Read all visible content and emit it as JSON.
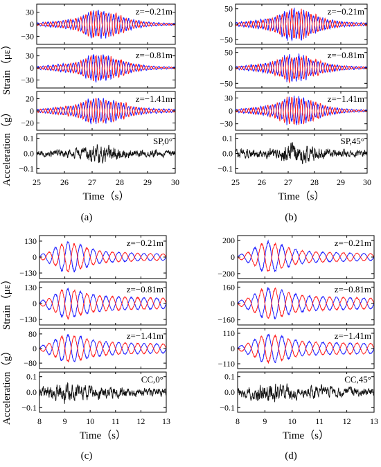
{
  "chart_data": [
    {
      "type": "line",
      "panel_label": "(a)",
      "xlabel": "Time（s）",
      "xticks": [
        "25",
        "26",
        "27",
        "28",
        "29",
        "30"
      ],
      "xlim": [
        25,
        30
      ],
      "grid": false,
      "strain_axis_label": "Strain（με）",
      "acceleration_axis_label": "Acceleration（g）",
      "series_colors": [
        "#1f1fff",
        "#ff2020",
        "#111111"
      ],
      "subplots": [
        {
          "annotation": "z=−0.21m",
          "yticks": [
            "30",
            "0",
            "−30"
          ],
          "ylim": [
            -50,
            50
          ],
          "series": [
            {
              "values": [
                3,
                6,
                9,
                12,
                34,
                30,
                18,
                10,
                5,
                3,
                2
              ]
            },
            {
              "values": [
                2,
                5,
                8,
                14,
                30,
                28,
                22,
                9,
                4,
                2,
                2
              ]
            }
          ]
        },
        {
          "annotation": "z=−0.81m",
          "yticks": [
            "30",
            "0",
            "−30"
          ],
          "ylim": [
            -50,
            50
          ],
          "series": [
            {
              "values": [
                3,
                6,
                9,
                12,
                30,
                28,
                16,
                9,
                5,
                3,
                2
              ]
            },
            {
              "values": [
                2,
                5,
                8,
                14,
                28,
                26,
                20,
                9,
                4,
                2,
                2
              ]
            }
          ]
        },
        {
          "annotation": "z=−1.41m",
          "yticks": [
            "20",
            "0",
            "−20"
          ],
          "ylim": [
            -32,
            32
          ],
          "series": [
            {
              "values": [
                2,
                4,
                6,
                9,
                20,
                18,
                12,
                6,
                4,
                3,
                2
              ]
            },
            {
              "values": [
                2,
                4,
                6,
                10,
                18,
                16,
                14,
                7,
                3,
                2,
                2
              ]
            }
          ]
        },
        {
          "annotation": "SP,0°",
          "yticks": [
            "0.1",
            "0.0",
            "−0.1"
          ],
          "ylim": [
            -0.13,
            0.13
          ],
          "series": [
            {
              "values": [
                0.025,
                0.03,
                0.035,
                0.04,
                0.075,
                0.07,
                0.05,
                0.035,
                0.03,
                0.028,
                0.025
              ]
            }
          ]
        }
      ]
    },
    {
      "type": "line",
      "panel_label": "(b)",
      "xlabel": "Time（s）",
      "xticks": [
        "25",
        "26",
        "27",
        "28",
        "29",
        "30"
      ],
      "xlim": [
        25,
        30
      ],
      "grid": false,
      "series_colors": [
        "#1f1fff",
        "#ff2020",
        "#111111"
      ],
      "subplots": [
        {
          "annotation": "z=−0.21m",
          "yticks": [
            "50",
            "0",
            "−50"
          ],
          "ylim": [
            -65,
            65
          ],
          "series": [
            {
              "values": [
                5,
                9,
                14,
                20,
                48,
                44,
                26,
                14,
                8,
                5,
                4
              ]
            },
            {
              "values": [
                4,
                8,
                13,
                22,
                44,
                42,
                30,
                13,
                7,
                4,
                4
              ]
            }
          ]
        },
        {
          "annotation": "z=−0.81m",
          "yticks": [
            "50",
            "0",
            "−50"
          ],
          "ylim": [
            -65,
            65
          ],
          "series": [
            {
              "values": [
                4,
                8,
                12,
                18,
                40,
                38,
                22,
                12,
                7,
                4,
                3
              ]
            },
            {
              "values": [
                3,
                7,
                11,
                20,
                38,
                36,
                26,
                12,
                6,
                3,
                3
              ]
            }
          ]
        },
        {
          "annotation": "z=−1.41m",
          "yticks": [
            "30",
            "0",
            "−30"
          ],
          "ylim": [
            -45,
            45
          ],
          "series": [
            {
              "values": [
                3,
                6,
                9,
                13,
                30,
                28,
                17,
                9,
                5,
                3,
                2
              ]
            },
            {
              "values": [
                2,
                5,
                8,
                15,
                28,
                26,
                20,
                9,
                4,
                2,
                2
              ]
            }
          ]
        },
        {
          "annotation": "SP,45°",
          "yticks": [
            "0.1",
            "0.0",
            "−0.1"
          ],
          "ylim": [
            -0.13,
            0.13
          ],
          "series": [
            {
              "values": [
                0.03,
                0.035,
                0.04,
                0.045,
                0.09,
                0.08,
                0.055,
                0.04,
                0.035,
                0.03,
                0.028
              ]
            }
          ]
        }
      ]
    },
    {
      "type": "line",
      "panel_label": "(c)",
      "xlabel": "Time（s）",
      "xticks": [
        "8",
        "9",
        "10",
        "11",
        "12",
        "13"
      ],
      "xlim": [
        8,
        13
      ],
      "grid": false,
      "strain_axis_label": "Strain（με）",
      "acceleration_axis_label": "Acceleration（g）",
      "series_colors": [
        "#1f1fff",
        "#ff2020",
        "#111111"
      ],
      "subplots": [
        {
          "annotation": "z=−0.21m",
          "yticks": [
            "130",
            "0",
            "−130"
          ],
          "ylim": [
            -175,
            175
          ],
          "series": [
            {
              "values": [
                15,
                60,
                125,
                110,
                70,
                45,
                40,
                35,
                30,
                28,
                26
              ]
            },
            {
              "values": [
                12,
                50,
                120,
                100,
                65,
                45,
                40,
                35,
                30,
                28,
                26
              ]
            }
          ]
        },
        {
          "annotation": "z=−0.81m",
          "yticks": [
            "130",
            "0",
            "−130"
          ],
          "ylim": [
            -175,
            175
          ],
          "series": [
            {
              "values": [
                15,
                60,
                120,
                105,
                75,
                60,
                55,
                50,
                48,
                45,
                42
              ]
            },
            {
              "values": [
                12,
                50,
                125,
                100,
                72,
                58,
                55,
                50,
                48,
                45,
                42
              ]
            }
          ]
        },
        {
          "annotation": "z=−1.41m",
          "yticks": [
            "80",
            "0",
            "−80"
          ],
          "ylim": [
            -110,
            110
          ],
          "series": [
            {
              "values": [
                10,
                40,
                75,
                70,
                48,
                38,
                34,
                30,
                28,
                26,
                24
              ]
            },
            {
              "values": [
                8,
                35,
                72,
                66,
                46,
                36,
                33,
                30,
                28,
                26,
                24
              ]
            }
          ]
        },
        {
          "annotation": "CC,0°",
          "yticks": [
            "0.1",
            "0.0",
            "−0.1"
          ],
          "ylim": [
            -0.13,
            0.13
          ],
          "series": [
            {
              "values": [
                0.04,
                0.06,
                0.085,
                0.075,
                0.06,
                0.05,
                0.045,
                0.04,
                0.04,
                0.035,
                0.035
              ]
            }
          ]
        }
      ]
    },
    {
      "type": "line",
      "panel_label": "(d)",
      "xlabel": "Time（s）",
      "xticks": [
        "8",
        "9",
        "10",
        "11",
        "12",
        "13"
      ],
      "xlim": [
        8,
        13
      ],
      "grid": false,
      "series_colors": [
        "#1f1fff",
        "#ff2020",
        "#111111"
      ],
      "subplots": [
        {
          "annotation": "z=−0.21m",
          "yticks": [
            "200",
            "0",
            "−200"
          ],
          "ylim": [
            -260,
            260
          ],
          "series": [
            {
              "values": [
                20,
                80,
                190,
                160,
                100,
                70,
                60,
                55,
                50,
                45,
                40
              ]
            },
            {
              "values": [
                18,
                70,
                185,
                150,
                95,
                68,
                60,
                55,
                50,
                45,
                40
              ]
            }
          ]
        },
        {
          "annotation": "z=−0.81m",
          "yticks": [
            "160",
            "0",
            "−160"
          ],
          "ylim": [
            -210,
            210
          ],
          "series": [
            {
              "values": [
                18,
                70,
                150,
                140,
                95,
                75,
                68,
                62,
                58,
                54,
                50
              ]
            },
            {
              "values": [
                15,
                65,
                155,
                135,
                92,
                72,
                66,
                62,
                58,
                54,
                50
              ]
            }
          ]
        },
        {
          "annotation": "z=−1.41m",
          "yticks": [
            "110",
            "0",
            "−110"
          ],
          "ylim": [
            -145,
            145
          ],
          "series": [
            {
              "values": [
                12,
                50,
                105,
                95,
                65,
                50,
                45,
                42,
                40,
                38,
                36
              ]
            },
            {
              "values": [
                10,
                45,
                100,
                90,
                62,
                48,
                44,
                42,
                40,
                38,
                36
              ]
            }
          ]
        },
        {
          "annotation": "CC,45°",
          "yticks": [
            "0.1",
            "0.0",
            "−0.1"
          ],
          "ylim": [
            -0.13,
            0.13
          ],
          "series": [
            {
              "values": [
                0.04,
                0.065,
                0.09,
                0.08,
                0.06,
                0.05,
                0.05,
                0.045,
                0.04,
                0.04,
                0.035
              ]
            }
          ]
        }
      ]
    }
  ]
}
